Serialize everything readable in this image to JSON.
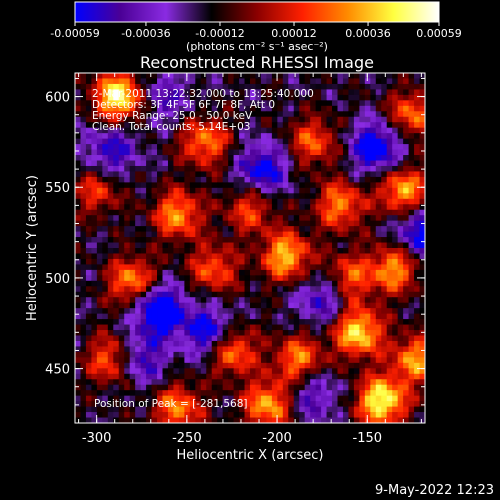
{
  "chart_data": {
    "type": "heatmap",
    "title": "Reconstructed RHESSI Image",
    "xlabel": "Heliocentric X (arcsec)",
    "ylabel": "Heliocentric Y (arcsec)",
    "xlim": [
      -312,
      -118
    ],
    "ylim": [
      420,
      613
    ],
    "xticks": [
      -300,
      -250,
      -200,
      -150
    ],
    "yticks": [
      450,
      500,
      550,
      600
    ],
    "colorbar": {
      "ticks": [
        -0.00059,
        -0.00036,
        -0.00012,
        0.00012,
        0.00036,
        0.00059
      ],
      "tick_labels": [
        "-0.00059",
        "-0.00036",
        "-0.00012",
        "0.00012",
        "0.00036",
        "0.00059"
      ],
      "unit_label": "(photons cm⁻² s⁻¹ asec⁻²)",
      "colormap": [
        "#0000ff",
        "#4b0096",
        "#8a2be2",
        "#000000",
        "#8b0000",
        "#ff2000",
        "#ff8c00",
        "#ffff40",
        "#ffffff"
      ]
    },
    "annotations": [
      "2-Mar-2011 13:22:32.000 to 13:25:40.000",
      "Detectors: 3F 4F 5F 6F 7F 8F, Att 0",
      "Energy Range: 25.0 - 50.0 keV",
      "Clean.  Total counts: 5.14E+03"
    ],
    "peak_label": "Position of Peak = [-281,568]",
    "peak": [
      -281,
      568
    ],
    "hotspots": [
      {
        "x": -288,
        "y": 600,
        "v": 1.0
      },
      {
        "x": -240,
        "y": 575,
        "v": 0.65
      },
      {
        "x": -180,
        "y": 575,
        "v": 0.55
      },
      {
        "x": -125,
        "y": 590,
        "v": 0.6
      },
      {
        "x": -300,
        "y": 548,
        "v": 0.45
      },
      {
        "x": -255,
        "y": 535,
        "v": 0.7
      },
      {
        "x": -215,
        "y": 538,
        "v": 0.5
      },
      {
        "x": -165,
        "y": 540,
        "v": 0.65
      },
      {
        "x": -130,
        "y": 548,
        "v": 0.75
      },
      {
        "x": -280,
        "y": 498,
        "v": 0.7
      },
      {
        "x": -235,
        "y": 505,
        "v": 0.55
      },
      {
        "x": -195,
        "y": 512,
        "v": 0.8
      },
      {
        "x": -160,
        "y": 500,
        "v": 0.55
      },
      {
        "x": -135,
        "y": 505,
        "v": 0.7
      },
      {
        "x": -292,
        "y": 455,
        "v": 0.6
      },
      {
        "x": -225,
        "y": 460,
        "v": 0.7
      },
      {
        "x": -188,
        "y": 455,
        "v": 0.65
      },
      {
        "x": -155,
        "y": 470,
        "v": 0.9
      },
      {
        "x": -142,
        "y": 432,
        "v": 1.0
      },
      {
        "x": -255,
        "y": 428,
        "v": 0.65
      },
      {
        "x": -123,
        "y": 455,
        "v": 0.7
      },
      {
        "x": -205,
        "y": 430,
        "v": 0.75
      }
    ],
    "coldspots": [
      {
        "x": -265,
        "y": 482,
        "v": -1.0
      },
      {
        "x": -238,
        "y": 470,
        "v": -0.7
      },
      {
        "x": -292,
        "y": 570,
        "v": -0.55
      },
      {
        "x": -208,
        "y": 560,
        "v": -0.7
      },
      {
        "x": -145,
        "y": 572,
        "v": -0.8
      },
      {
        "x": -120,
        "y": 525,
        "v": -0.7
      },
      {
        "x": -175,
        "y": 488,
        "v": -0.5
      },
      {
        "x": -275,
        "y": 455,
        "v": -0.55
      },
      {
        "x": -262,
        "y": 600,
        "v": -0.4
      },
      {
        "x": -180,
        "y": 435,
        "v": -0.45
      }
    ]
  },
  "timestamp": "9-May-2022 12:23"
}
